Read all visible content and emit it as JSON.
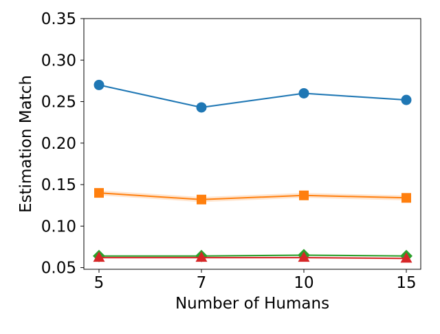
{
  "chart_data": {
    "type": "line",
    "title": "",
    "xlabel": "Number of Humans",
    "ylabel": "Estimation Match",
    "categories": [
      "5",
      "7",
      "10",
      "15"
    ],
    "ylim": [
      0.048,
      0.35
    ],
    "yticks": [
      "0.05",
      "0.10",
      "0.15",
      "0.20",
      "0.25",
      "0.30",
      "0.35"
    ],
    "yticks_values": [
      0.05,
      0.1,
      0.15,
      0.2,
      0.25,
      0.3,
      0.35
    ],
    "grid": false,
    "legend": "none",
    "series": [
      {
        "color": "#1f77b4",
        "marker": "circle",
        "values": [
          0.27,
          0.243,
          0.26,
          0.252
        ],
        "band": 0.001
      },
      {
        "color": "#ff7f0e",
        "marker": "square",
        "values": [
          0.14,
          0.132,
          0.137,
          0.134
        ],
        "band": 0.003
      },
      {
        "color": "#2ca02c",
        "marker": "diamond",
        "values": [
          0.064,
          0.064,
          0.065,
          0.064
        ],
        "band": 0.001
      },
      {
        "color": "#d62728",
        "marker": "triangle",
        "values": [
          0.062,
          0.062,
          0.062,
          0.061
        ],
        "band": 0.001
      }
    ]
  }
}
